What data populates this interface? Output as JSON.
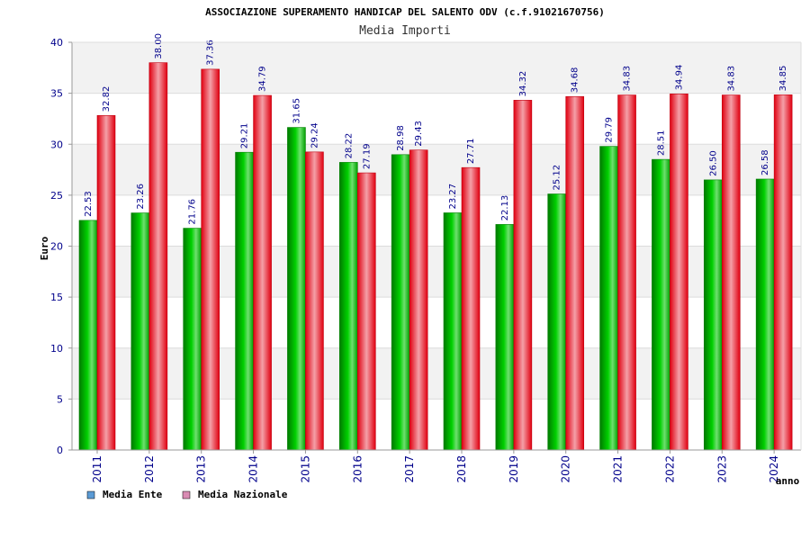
{
  "chart_data": {
    "type": "bar",
    "title": "ASSOCIAZIONE SUPERAMENTO HANDICAP DEL SALENTO ODV (c.f.91021670756)",
    "subtitle": "Media Importi",
    "xlabel": "anno",
    "ylabel": "Euro",
    "ylim": [
      0,
      40
    ],
    "yticks": [
      "0",
      "5",
      "10",
      "15",
      "20",
      "25",
      "30",
      "35",
      "40"
    ],
    "categories": [
      "2011",
      "2012",
      "2013",
      "2014",
      "2015",
      "2016",
      "2017",
      "2018",
      "2019",
      "2020",
      "2021",
      "2022",
      "2023",
      "2024"
    ],
    "series": [
      {
        "name": "Media Ente",
        "color": "#00b000",
        "legend_color": "#5b9bd5",
        "values": [
          22.53,
          23.26,
          21.76,
          29.21,
          31.65,
          28.22,
          28.98,
          23.27,
          22.13,
          25.12,
          29.79,
          28.51,
          26.5,
          26.58
        ],
        "labels": [
          "22.53",
          "23.26",
          "21.76",
          "29.21",
          "31.65",
          "28.22",
          "28.98",
          "23.27",
          "22.13",
          "25.12",
          "29.79",
          "28.51",
          "26.50",
          "26.58"
        ]
      },
      {
        "name": "Media Nazionale",
        "color": "#e8202a",
        "legend_color": "#d98cb3",
        "values": [
          32.82,
          38.0,
          37.36,
          34.79,
          29.24,
          27.19,
          29.43,
          27.71,
          34.32,
          34.68,
          34.83,
          34.94,
          34.83,
          34.85
        ],
        "labels": [
          "32.82",
          "38.00",
          "37.36",
          "34.79",
          "29.24",
          "27.19",
          "29.43",
          "27.71",
          "34.32",
          "34.68",
          "34.83",
          "34.94",
          "34.83",
          "34.85"
        ]
      }
    ],
    "grid": true,
    "legend": "bottom-left"
  }
}
